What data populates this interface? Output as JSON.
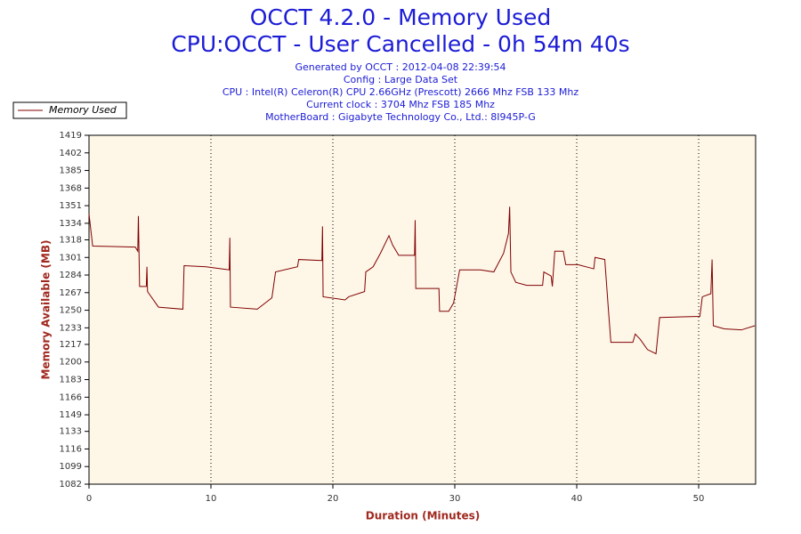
{
  "chart_data": {
    "type": "line",
    "title": "OCCT 4.2.0 - Memory Used",
    "subtitle": "CPU:OCCT - User Cancelled - 0h 54m 40s",
    "notes": [
      "Generated by OCCT : 2012-04-08 22:39:54",
      "Config : Large Data Set",
      "CPU : Intel(R) Celeron(R) CPU 2.66GHz (Prescott) 2666 Mhz FSB 133 Mhz",
      "Current clock : 3704 Mhz FSB 185 Mhz",
      "MotherBoard : Gigabyte Technology Co., Ltd.: 8I945P-G"
    ],
    "xlabel": "Duration (Minutes)",
    "ylabel": "Memory Available (MB)",
    "xlim": [
      0,
      54.67
    ],
    "ylim": [
      1082,
      1419
    ],
    "xticks": [
      0,
      10,
      20,
      30,
      40,
      50
    ],
    "yticks": [
      1082,
      1099,
      1116,
      1133,
      1149,
      1166,
      1183,
      1200,
      1217,
      1233,
      1250,
      1267,
      1284,
      1301,
      1318,
      1334,
      1351,
      1368,
      1385,
      1402,
      1419
    ],
    "grid": "x",
    "legend": "upper-left",
    "series": [
      {
        "name": "Memory Used",
        "color": "#800000",
        "x": [
          0,
          0.3,
          3.8,
          4.0,
          4.05,
          4.15,
          4.7,
          4.75,
          4.8,
          5.7,
          7.7,
          7.8,
          9.6,
          11.5,
          11.55,
          11.6,
          13.8,
          15.0,
          15.3,
          17.1,
          17.2,
          19.1,
          19.15,
          19.2,
          21.0,
          21.3,
          22.6,
          22.7,
          23.3,
          23.9,
          24.6,
          24.9,
          25.4,
          26.7,
          26.75,
          26.8,
          28.7,
          28.75,
          29.5,
          29.9,
          30.4,
          32.1,
          33.2,
          34.0,
          34.4,
          34.5,
          34.6,
          35.0,
          35.9,
          37.2,
          37.3,
          37.9,
          38.0,
          38.2,
          38.9,
          39.1,
          40.1,
          41.4,
          41.5,
          42.3,
          42.6,
          42.8,
          44.6,
          44.8,
          45.2,
          45.8,
          46.5,
          46.8,
          50.1,
          50.3,
          51.0,
          51.1,
          51.2,
          52.1,
          53.5,
          54.6
        ],
        "values": [
          1343,
          1312,
          1311,
          1307,
          1341,
          1273,
          1273,
          1292,
          1268,
          1253,
          1251,
          1293,
          1292,
          1289,
          1320,
          1253,
          1251,
          1262,
          1287,
          1292,
          1299,
          1298,
          1331,
          1263,
          1260,
          1263,
          1268,
          1287,
          1292,
          1305,
          1322,
          1313,
          1303,
          1303,
          1337,
          1271,
          1271,
          1249,
          1249,
          1257,
          1289,
          1289,
          1287,
          1305,
          1324,
          1350,
          1287,
          1277,
          1274,
          1274,
          1287,
          1283,
          1273,
          1307,
          1307,
          1294,
          1294,
          1290,
          1301,
          1299,
          1250,
          1219,
          1219,
          1227,
          1222,
          1212,
          1208,
          1243,
          1244,
          1263,
          1266,
          1299,
          1235,
          1232,
          1231,
          1235
        ]
      }
    ]
  }
}
